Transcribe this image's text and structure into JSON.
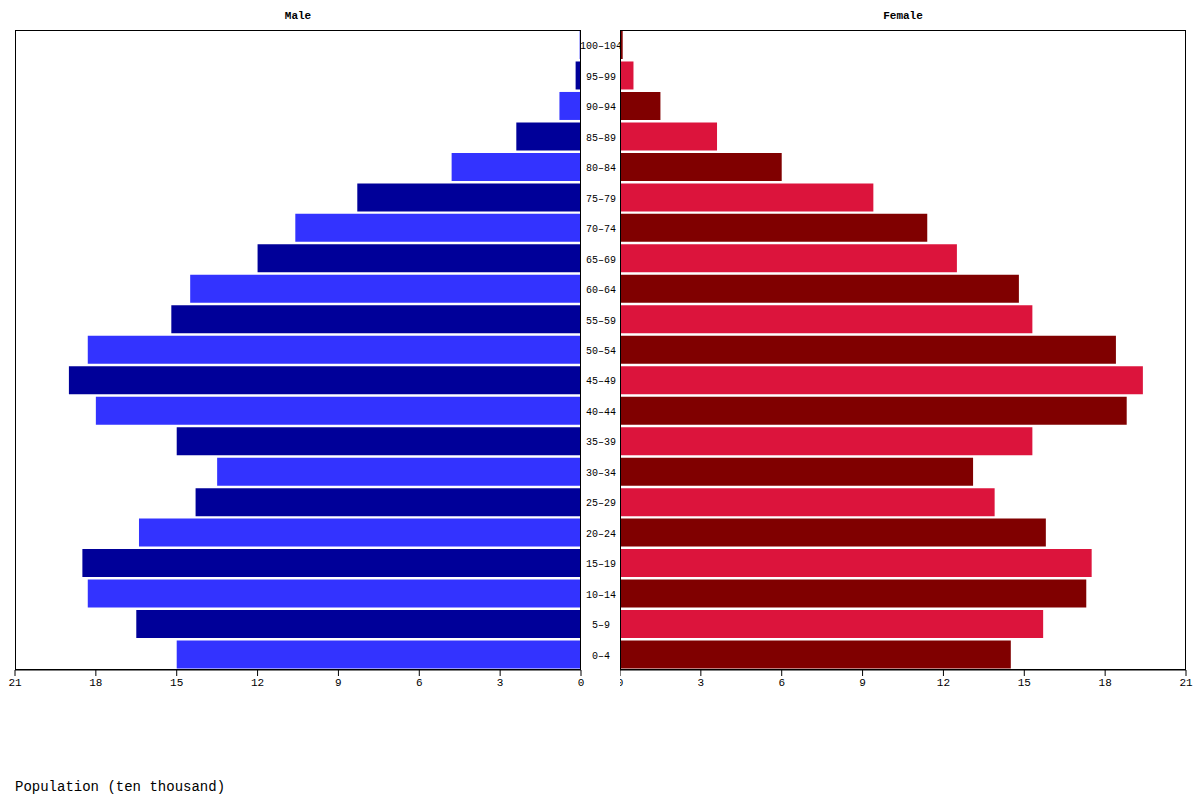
{
  "chart_data": [
    {
      "type": "bar",
      "title": "Male",
      "orientation": "horizontal",
      "xlabel": "Population (ten thousand)",
      "categories": [
        "100–104",
        "95–99",
        "90–94",
        "85–89",
        "80–84",
        "75–79",
        "70–74",
        "65–69",
        "60–64",
        "55–59",
        "50–54",
        "45–49",
        "40–44",
        "35–39",
        "30–34",
        "25–29",
        "20–24",
        "15–19",
        "10–14",
        "5–9",
        "0–4"
      ],
      "values": [
        0.05,
        0.2,
        0.8,
        2.4,
        4.8,
        8.3,
        10.6,
        12.0,
        14.5,
        15.2,
        18.3,
        19.0,
        18.0,
        15.0,
        13.5,
        14.3,
        16.4,
        18.5,
        18.3,
        16.5,
        15.0
      ],
      "colors": [
        "#3333ff",
        "#000099",
        "#3333ff",
        "#000099",
        "#3333ff",
        "#000099",
        "#3333ff",
        "#000099",
        "#3333ff",
        "#000099",
        "#3333ff",
        "#000099",
        "#3333ff",
        "#000099",
        "#3333ff",
        "#000099",
        "#3333ff",
        "#000099",
        "#3333ff",
        "#000099",
        "#3333ff"
      ],
      "xlim": [
        0,
        21
      ],
      "xticks": [
        0,
        3,
        6,
        9,
        12,
        15,
        18,
        21
      ]
    },
    {
      "type": "bar",
      "title": "Female",
      "orientation": "horizontal",
      "tick_labels": "x",
      "categories": [
        "100–104",
        "95–99",
        "90–94",
        "85–89",
        "80–84",
        "75–79",
        "70–74",
        "65–69",
        "60–64",
        "55–59",
        "50–54",
        "45–49",
        "40–44",
        "35–39",
        "30–34",
        "25–29",
        "20–24",
        "15–19",
        "10–14",
        "5–9",
        "0–4"
      ],
      "values": [
        0.1,
        0.5,
        1.5,
        3.6,
        6.0,
        9.4,
        11.4,
        12.5,
        14.8,
        15.3,
        18.4,
        19.4,
        18.8,
        15.3,
        13.1,
        13.9,
        15.8,
        17.5,
        17.3,
        15.7,
        14.5
      ],
      "colors": [
        "#800000",
        "#dc143c",
        "#800000",
        "#dc143c",
        "#800000",
        "#dc143c",
        "#800000",
        "#dc143c",
        "#800000",
        "#dc143c",
        "#800000",
        "#dc143c",
        "#800000",
        "#dc143c",
        "#800000",
        "#dc143c",
        "#800000",
        "#dc143c",
        "#800000",
        "#dc143c",
        "#800000"
      ],
      "xlim": [
        0,
        21
      ],
      "xticks": [
        0,
        3,
        6,
        9,
        12,
        15,
        18,
        21
      ]
    }
  ]
}
